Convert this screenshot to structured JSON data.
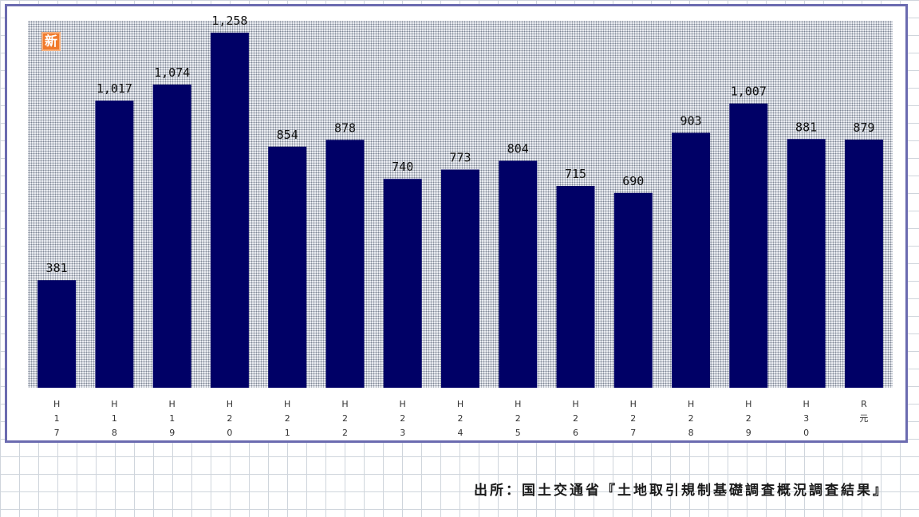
{
  "badge": {
    "label": "新"
  },
  "source": {
    "text": "出所：国土交通省『土地取引規制基礎調査概況調査結果』"
  },
  "colors": {
    "bar": "#000066",
    "frame": "#6b6bb0",
    "badge": "#f07a2c",
    "grid": "#cfd5dc"
  },
  "chart_data": {
    "type": "bar",
    "categories": [
      [
        "H",
        "1",
        "7"
      ],
      [
        "H",
        "1",
        "8"
      ],
      [
        "H",
        "1",
        "9"
      ],
      [
        "H",
        "2",
        "0"
      ],
      [
        "H",
        "2",
        "1"
      ],
      [
        "H",
        "2",
        "2"
      ],
      [
        "H",
        "2",
        "3"
      ],
      [
        "H",
        "2",
        "4"
      ],
      [
        "H",
        "2",
        "5"
      ],
      [
        "H",
        "2",
        "6"
      ],
      [
        "H",
        "2",
        "7"
      ],
      [
        "H",
        "2",
        "8"
      ],
      [
        "H",
        "2",
        "9"
      ],
      [
        "H",
        "3",
        "0"
      ],
      [
        "R",
        "元"
      ]
    ],
    "values": [
      381,
      1017,
      1074,
      1258,
      854,
      878,
      740,
      773,
      804,
      715,
      690,
      903,
      1007,
      881,
      879
    ],
    "data_labels": [
      "381",
      "1,017",
      "1,074",
      "1,258",
      "854",
      "878",
      "740",
      "773",
      "804",
      "715",
      "690",
      "903",
      "1,007",
      "881",
      "879"
    ],
    "ylim": [
      0,
      1300
    ],
    "grid": false,
    "legend": "none"
  }
}
